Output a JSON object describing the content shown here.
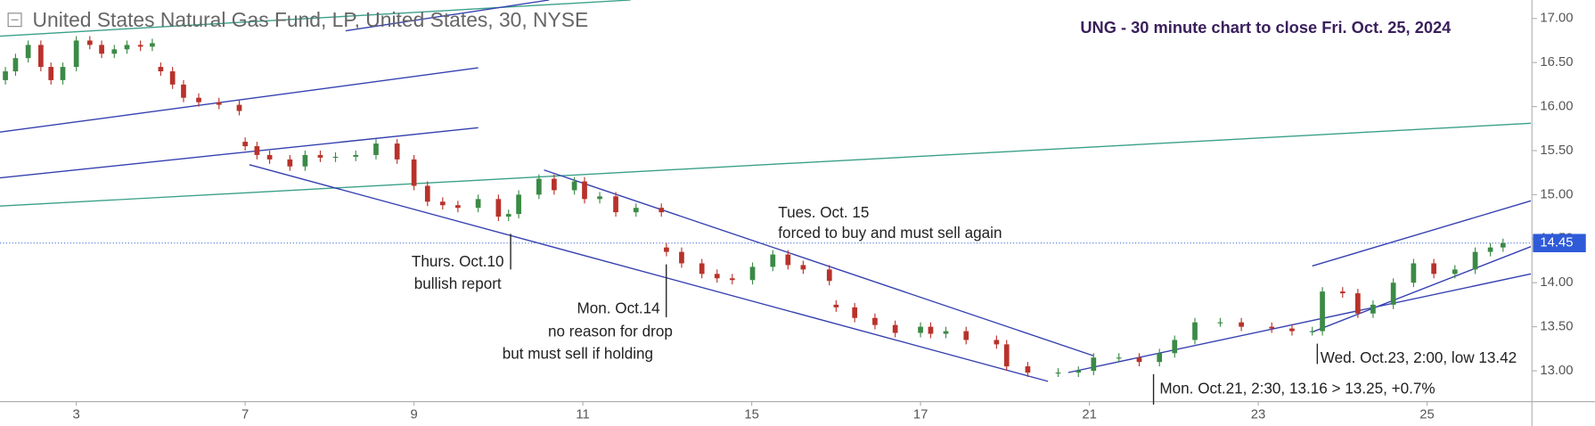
{
  "chart_data": {
    "type": "candlestick",
    "title": "United States Natural Gas Fund, LP, United States, 30, NYSE",
    "subtitle": "UNG - 30 minute chart to close Fri. Oct. 25, 2024",
    "up_color": "#3b8a46",
    "down_color": "#b8322a",
    "x": [
      -0.84,
      -0.72,
      -0.57,
      -0.42,
      -0.3,
      -0.16,
      0,
      0.16,
      0.3,
      0.45,
      0.6,
      0.76,
      0.9,
      1.0,
      1.14,
      1.27,
      1.45,
      1.69,
      1.93,
      2.0,
      2.14,
      2.29,
      2.53,
      2.71,
      2.89,
      3.07,
      3.31,
      3.55,
      3.8,
      4.0,
      4.16,
      4.34,
      4.52,
      4.76,
      5.0,
      5.12,
      5.24,
      5.48,
      5.66,
      5.9,
      6.02,
      6.2,
      6.39,
      6.63,
      6.93,
      6.99,
      7.17,
      7.41,
      7.59,
      7.77,
      8.01,
      8.25,
      8.43,
      8.61,
      8.92,
      9.0,
      9.22,
      9.46,
      9.7,
      10.0,
      10.12,
      10.3,
      10.54,
      10.9,
      11.02,
      11.27,
      11.63,
      11.87,
      12.05,
      12.35,
      12.59,
      12.83,
      13.01,
      13.25,
      13.55,
      13.8,
      14.16,
      14.4,
      14.64,
      14.76,
      15.0,
      15.18,
      15.36,
      15.6,
      15.84,
      16.08,
      16.33,
      16.57,
      16.75,
      16.9
    ],
    "open": [
      16.3,
      16.4,
      16.55,
      16.7,
      16.45,
      16.3,
      16.45,
      16.75,
      16.7,
      16.6,
      16.65,
      16.7,
      16.68,
      16.45,
      16.4,
      16.25,
      16.1,
      16.05,
      16.02,
      15.6,
      15.55,
      15.45,
      15.4,
      15.32,
      15.45,
      15.42,
      15.43,
      15.45,
      15.58,
      15.4,
      15.1,
      14.92,
      14.88,
      14.85,
      14.95,
      14.75,
      14.78,
      15.0,
      15.18,
      15.05,
      15.15,
      14.95,
      14.98,
      14.8,
      14.85,
      14.4,
      14.35,
      14.22,
      14.1,
      14.05,
      14.03,
      14.18,
      14.32,
      14.2,
      14.15,
      13.75,
      13.72,
      13.6,
      13.52,
      13.43,
      13.5,
      13.42,
      13.45,
      13.35,
      13.3,
      13.05,
      12.98,
      12.98,
      13.0,
      13.15,
      13.15,
      13.1,
      13.2,
      13.35,
      13.55,
      13.55,
      13.5,
      13.48,
      13.45,
      13.45,
      13.9,
      13.88,
      13.65,
      13.75,
      14.0,
      14.22,
      14.1,
      14.15,
      14.35,
      14.4
    ],
    "high": [
      16.45,
      16.6,
      16.75,
      16.75,
      16.5,
      16.5,
      16.8,
      16.8,
      16.75,
      16.7,
      16.75,
      16.75,
      16.77,
      16.5,
      16.45,
      16.3,
      16.15,
      16.1,
      16.07,
      15.65,
      15.6,
      15.5,
      15.45,
      15.5,
      15.5,
      15.48,
      15.5,
      15.63,
      15.63,
      15.45,
      15.15,
      14.97,
      14.93,
      15.0,
      15.0,
      14.83,
      15.05,
      15.23,
      15.23,
      15.2,
      15.2,
      15.03,
      15.03,
      14.9,
      14.9,
      14.45,
      14.4,
      14.27,
      14.15,
      14.1,
      14.23,
      14.37,
      14.37,
      14.25,
      14.2,
      13.8,
      13.77,
      13.65,
      13.57,
      13.55,
      13.55,
      13.5,
      13.5,
      13.4,
      13.35,
      13.1,
      13.03,
      13.05,
      13.2,
      13.2,
      13.2,
      13.25,
      13.4,
      13.6,
      13.6,
      13.6,
      13.55,
      13.53,
      13.5,
      13.95,
      13.95,
      13.93,
      13.8,
      14.05,
      14.27,
      14.27,
      14.2,
      14.4,
      14.45,
      14.5
    ],
    "low": [
      16.25,
      16.35,
      16.5,
      16.4,
      16.25,
      16.25,
      16.4,
      16.65,
      16.55,
      16.55,
      16.6,
      16.63,
      16.63,
      16.35,
      16.2,
      16.05,
      16.0,
      15.97,
      15.9,
      15.5,
      15.4,
      15.35,
      15.27,
      15.27,
      15.37,
      15.37,
      15.38,
      15.4,
      15.35,
      15.05,
      14.87,
      14.83,
      14.8,
      14.8,
      14.7,
      14.7,
      14.73,
      14.95,
      15.0,
      15.0,
      14.9,
      14.9,
      14.75,
      14.75,
      14.75,
      14.3,
      14.17,
      14.05,
      14.0,
      13.98,
      13.98,
      14.13,
      14.15,
      14.1,
      13.97,
      13.67,
      13.55,
      13.47,
      13.38,
      13.38,
      13.37,
      13.37,
      13.3,
      13.25,
      13.0,
      12.93,
      12.93,
      12.93,
      12.95,
      13.1,
      13.05,
      13.05,
      13.15,
      13.3,
      13.5,
      13.45,
      13.43,
      13.4,
      13.4,
      13.4,
      13.83,
      13.6,
      13.6,
      13.7,
      13.95,
      14.05,
      14.05,
      14.1,
      14.3,
      14.35
    ],
    "close": [
      16.4,
      16.55,
      16.7,
      16.45,
      16.3,
      16.45,
      16.75,
      16.7,
      16.6,
      16.65,
      16.7,
      16.68,
      16.72,
      16.4,
      16.25,
      16.1,
      16.05,
      16.02,
      15.95,
      15.55,
      15.45,
      15.4,
      15.32,
      15.45,
      15.42,
      15.43,
      15.45,
      15.58,
      15.4,
      15.1,
      14.92,
      14.88,
      14.85,
      14.95,
      14.75,
      14.78,
      15.0,
      15.18,
      15.05,
      15.15,
      14.95,
      14.98,
      14.8,
      14.85,
      14.8,
      14.35,
      14.22,
      14.1,
      14.05,
      14.03,
      14.18,
      14.32,
      14.2,
      14.15,
      14.02,
      13.72,
      13.6,
      13.52,
      13.43,
      13.5,
      13.42,
      13.45,
      13.35,
      13.3,
      13.05,
      12.98,
      12.98,
      13.0,
      13.15,
      13.15,
      13.1,
      13.2,
      13.35,
      13.55,
      13.55,
      13.5,
      13.48,
      13.45,
      13.45,
      13.9,
      13.88,
      13.65,
      13.75,
      14.0,
      14.22,
      14.1,
      14.15,
      14.35,
      14.4,
      14.45
    ],
    "xlim": [
      -0.904,
      17.23
    ],
    "ylim": [
      12.65,
      17.21
    ],
    "xticks": [
      {
        "value": 0,
        "label": "3"
      },
      {
        "value": 2,
        "label": "7"
      },
      {
        "value": 4,
        "label": "9"
      },
      {
        "value": 6,
        "label": "11"
      },
      {
        "value": 8,
        "label": "15"
      },
      {
        "value": 10,
        "label": "17"
      },
      {
        "value": 12,
        "label": "21"
      },
      {
        "value": 14,
        "label": "23"
      },
      {
        "value": 16,
        "label": "25"
      }
    ],
    "yticks": [
      {
        "value": 13,
        "label": "13.00"
      },
      {
        "value": 13.5,
        "label": "13.50"
      },
      {
        "value": 14,
        "label": "14.00"
      },
      {
        "value": 14.5,
        "label": "14.50"
      },
      {
        "value": 15,
        "label": "15.00"
      },
      {
        "value": 15.5,
        "label": "15.50"
      },
      {
        "value": 16,
        "label": "16.00"
      },
      {
        "value": 16.5,
        "label": "16.50"
      },
      {
        "value": 17,
        "label": "17.00"
      }
    ],
    "last_price": {
      "value": 14.45,
      "label": "14.45",
      "color": "#2f5bd8"
    },
    "trendlines": [
      {
        "color": "#3aa088",
        "x": [
          -0.904,
          6.566
        ],
        "y": [
          16.8,
          17.21
        ]
      },
      {
        "color": "#3540b0",
        "x": [
          3.19,
          5.6
        ],
        "y": [
          16.86,
          17.21
        ]
      },
      {
        "color": "#3540b0",
        "x": [
          -0.904,
          4.76
        ],
        "y": [
          15.71,
          16.44
        ]
      },
      {
        "color": "#3540b0",
        "x": [
          -0.904,
          4.76
        ],
        "y": [
          15.19,
          15.76
        ]
      },
      {
        "color": "#3aa088",
        "x": [
          -0.904,
          17.23
        ],
        "y": [
          14.87,
          15.81
        ]
      },
      {
        "color": "#3540b0",
        "x": [
          2.05,
          11.51
        ],
        "y": [
          15.34,
          12.88
        ]
      },
      {
        "color": "#3540b0",
        "x": [
          5.54,
          12.05
        ],
        "y": [
          15.28,
          13.17
        ]
      },
      {
        "color": "#3540b0",
        "x": [
          11.75,
          17.23
        ],
        "y": [
          12.98,
          14.1
        ]
      },
      {
        "color": "#3540b0",
        "x": [
          14.64,
          17.23
        ],
        "y": [
          14.19,
          14.93
        ]
      },
      {
        "color": "#3540b0",
        "x": [
          14.64,
          17.23
        ],
        "y": [
          13.44,
          14.41
        ]
      }
    ],
    "annotations": [
      {
        "lines": [
          "Thurs. Oct.10",
          "bullish report"
        ]
      },
      {
        "lines": [
          "Mon. Oct.14",
          "no reason for drop",
          "but must sell if holding"
        ]
      },
      {
        "lines": [
          "Tues. Oct. 15",
          "forced to buy and must sell again"
        ]
      },
      {
        "lines": [
          "Mon. Oct.21, 2:30, 13.16 > 13.25, +0.7%"
        ]
      },
      {
        "lines": [
          "Wed. Oct.23, 2:00, low 13.42"
        ]
      }
    ]
  }
}
